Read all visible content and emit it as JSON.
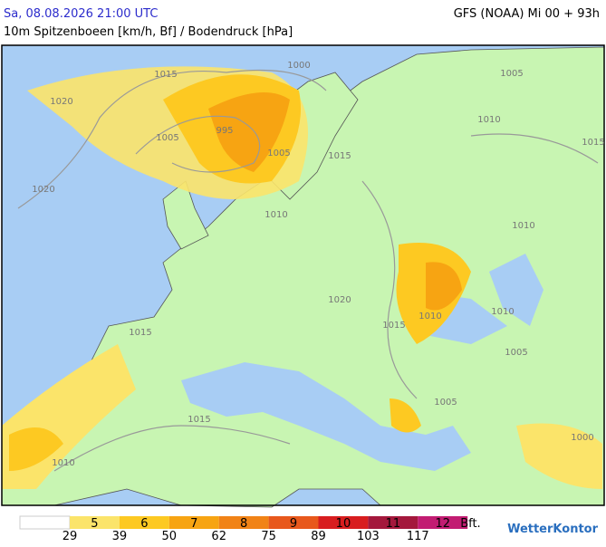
{
  "header": {
    "datetime": "Sa, 08.08.2026 21:00 UTC",
    "model": "GFS (NOAA) Mi 00 + 93h",
    "subtitle": "10m Spitzenboeen [km/h, Bf] / Bodendruck [hPa]"
  },
  "isobar_labels": [
    "1015",
    "1020",
    "1005",
    "995",
    "1000",
    "1005",
    "1015",
    "1020",
    "1010",
    "1005",
    "1010",
    "1015",
    "1010",
    "1020",
    "1015",
    "1010",
    "1010",
    "1005",
    "1015",
    "1015",
    "1010",
    "1005",
    "1000"
  ],
  "legend": {
    "classes": [
      {
        "bft": 5,
        "color": "#fbe46a"
      },
      {
        "bft": 6,
        "color": "#fdc922"
      },
      {
        "bft": 7,
        "color": "#f7a412"
      },
      {
        "bft": 8,
        "color": "#f18316"
      },
      {
        "bft": 9,
        "color": "#e8581c"
      },
      {
        "bft": 10,
        "color": "#d81d1f"
      },
      {
        "bft": 11,
        "color": "#a4183c"
      },
      {
        "bft": 12,
        "color": "#c21c72"
      }
    ],
    "unit": "Bft.",
    "thresholds_kmh": [
      29,
      39,
      50,
      62,
      75,
      89,
      103,
      117
    ]
  },
  "logo": "WetterKontor"
}
